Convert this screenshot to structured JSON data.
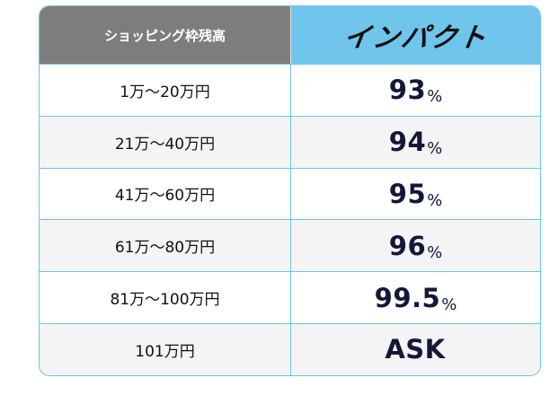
{
  "header": {
    "left_label": "ショッピング枠残高",
    "brand_logo": "インパクト"
  },
  "rows": [
    {
      "range": "1万〜20万円",
      "rate": "93",
      "unit": "%"
    },
    {
      "range": "21万〜40万円",
      "rate": "94",
      "unit": "%"
    },
    {
      "range": "41万〜60万円",
      "rate": "95",
      "unit": "%"
    },
    {
      "range": "61万〜80万円",
      "rate": "96",
      "unit": "%"
    },
    {
      "range": "81万〜100万円",
      "rate": "99.5",
      "unit": "%"
    },
    {
      "range": "101万円",
      "rate": "ASK",
      "unit": ""
    }
  ],
  "colors": {
    "header_gray": "#7d7d7d",
    "header_blue": "#6fc5ec",
    "border": "#6cc4ea",
    "rate_text": "#13183a"
  }
}
